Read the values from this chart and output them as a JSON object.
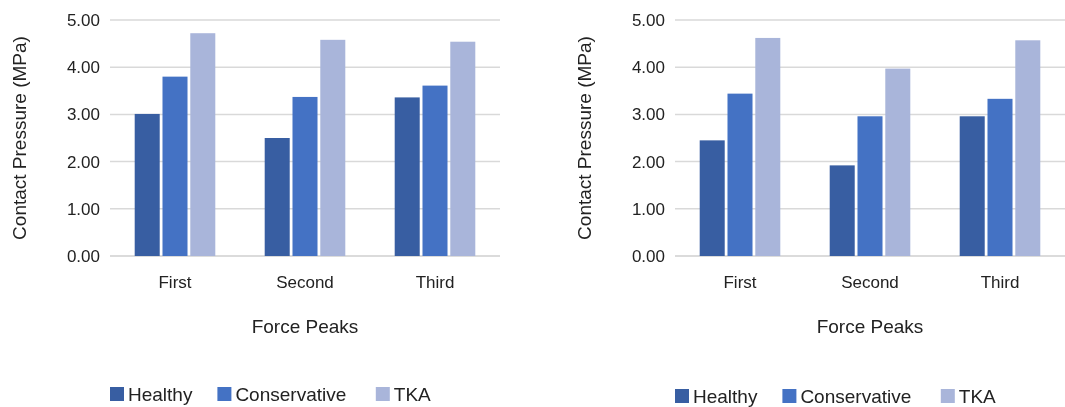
{
  "chart_data": [
    {
      "type": "bar",
      "categories": [
        "First",
        "Second",
        "Third"
      ],
      "xlabel": "Force Peaks",
      "ylabel": "Contact Pressure (MPa)",
      "series": [
        {
          "name": "Healthy",
          "color": "#385ea2",
          "values": [
            3.01,
            2.5,
            3.36
          ]
        },
        {
          "name": "Conservative",
          "color": "#4472c4",
          "values": [
            3.8,
            3.37,
            3.61
          ]
        },
        {
          "name": "TKA",
          "color": "#a9b5da",
          "values": [
            4.72,
            4.58,
            4.54
          ]
        }
      ],
      "ylim": [
        0,
        5
      ],
      "yticks": [
        {
          "value": 0,
          "label": "0.00"
        },
        {
          "value": 1,
          "label": "1.00"
        },
        {
          "value": 2,
          "label": "2.00"
        },
        {
          "value": 3,
          "label": "3.00"
        },
        {
          "value": 4,
          "label": "4.00"
        },
        {
          "value": 5,
          "label": "5.00"
        }
      ],
      "grid": "y",
      "legend": "bottom"
    },
    {
      "type": "bar",
      "categories": [
        "First",
        "Second",
        "Third"
      ],
      "xlabel": "Force Peaks",
      "ylabel": "Contact Pressure (MPa)",
      "series": [
        {
          "name": "Healthy",
          "color": "#385ea2",
          "values": [
            2.45,
            1.92,
            2.96
          ]
        },
        {
          "name": "Conservative",
          "color": "#4472c4",
          "values": [
            3.44,
            2.96,
            3.33
          ]
        },
        {
          "name": "TKA",
          "color": "#a9b5da",
          "values": [
            4.62,
            3.97,
            4.57
          ]
        }
      ],
      "ylim": [
        0,
        5
      ],
      "yticks": [
        {
          "value": 0,
          "label": "0.00"
        },
        {
          "value": 1,
          "label": "1.00"
        },
        {
          "value": 2,
          "label": "2.00"
        },
        {
          "value": 3,
          "label": "3.00"
        },
        {
          "value": 4,
          "label": "4.00"
        },
        {
          "value": 5,
          "label": "5.00"
        }
      ],
      "grid": "y",
      "legend": "bottom"
    }
  ]
}
